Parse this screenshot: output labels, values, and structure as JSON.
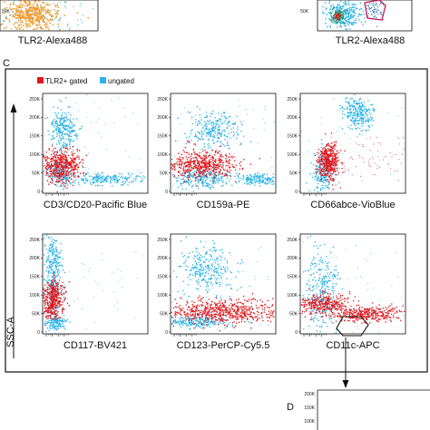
{
  "figure": {
    "top_panels": [
      {
        "id": "top-left",
        "x_label": "TLR2-Alexa488",
        "y_ticks": [
          "50K"
        ]
      },
      {
        "id": "top-right",
        "x_label": "TLR2-Alexa488",
        "y_ticks": [
          "50K"
        ]
      }
    ],
    "panel_c": {
      "letter": "C",
      "y_axis_label": "SSC-A",
      "legend": [
        {
          "label": "TLR2+ gated",
          "color": "#e0161c"
        },
        {
          "label": "ungated",
          "color": "#2ab3e6"
        }
      ],
      "plots": [
        {
          "x_label": "CD3/CD20-Pacific Blue"
        },
        {
          "x_label": "CD159a-PE"
        },
        {
          "x_label": "CD66abce-VioBlue"
        },
        {
          "x_label": "CD117-BV421"
        },
        {
          "x_label": "CD123-PerCP-Cy5.5"
        },
        {
          "x_label": "CD11c-APC"
        }
      ],
      "y_ticks": [
        "250K",
        "200K",
        "150K",
        "100K",
        "50K",
        "0"
      ]
    },
    "panel_d": {
      "letter": "D",
      "y_ticks": [
        "200K",
        "150K",
        "100K"
      ]
    },
    "colors": {
      "gated": "#e0161c",
      "ungated": "#2ab3e6",
      "orange": "#f39a2a",
      "gate_outline": "#c2185b"
    }
  }
}
